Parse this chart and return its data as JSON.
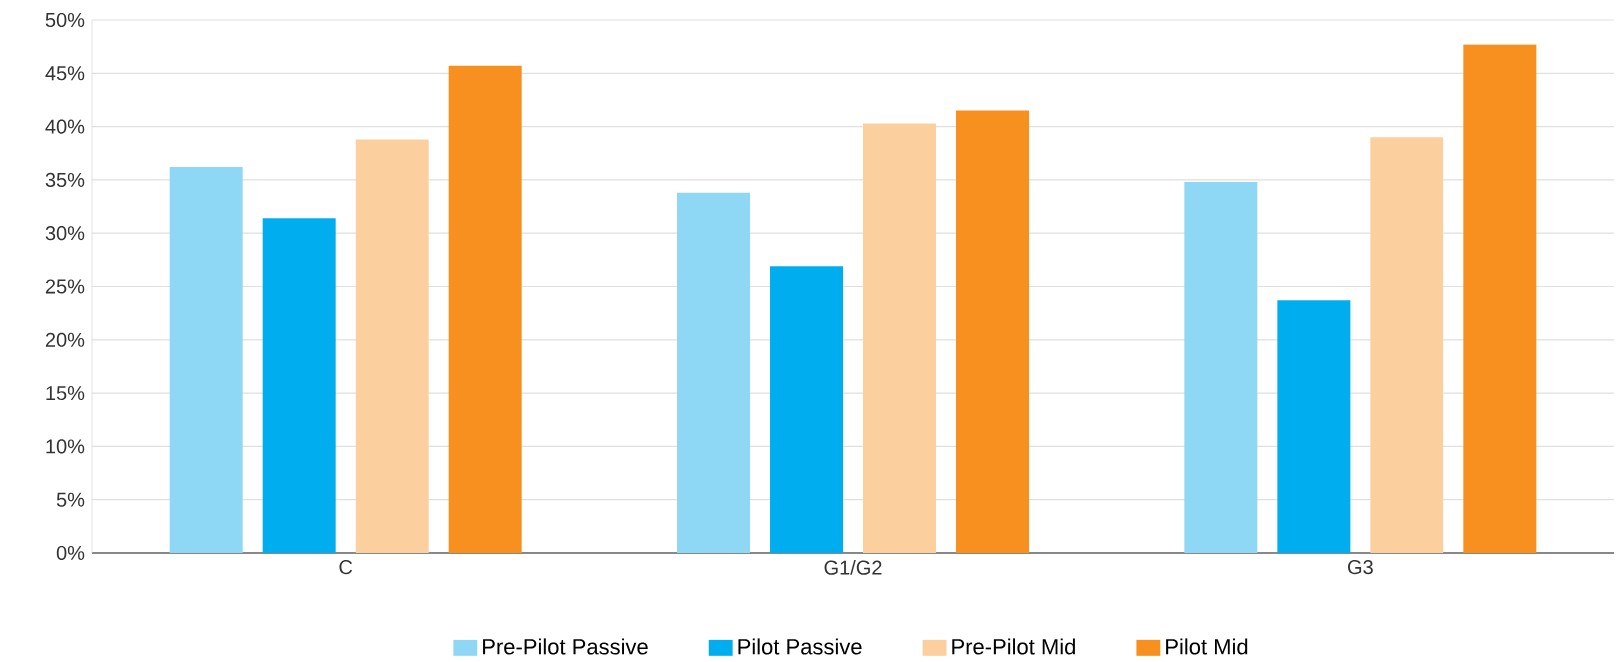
{
  "chart_data": {
    "type": "bar",
    "categories": [
      "C",
      "G1/G2",
      "G3"
    ],
    "series": [
      {
        "name": "Pre-Pilot Passive",
        "color": "#8fd8f5",
        "values": [
          36.2,
          33.8,
          34.8
        ]
      },
      {
        "name": "Pilot Passive",
        "color": "#00aeef",
        "values": [
          31.4,
          26.9,
          23.7
        ]
      },
      {
        "name": "Pre-Pilot Mid",
        "color": "#fccf9e",
        "values": [
          38.8,
          40.3,
          39.0
        ]
      },
      {
        "name": "Pilot Mid",
        "color": "#f7901e",
        "values": [
          45.7,
          41.5,
          47.7
        ]
      }
    ],
    "ylim": [
      0,
      50
    ],
    "yticks": [
      {
        "value": 0,
        "label": "0%"
      },
      {
        "value": 5,
        "label": "5%"
      },
      {
        "value": 10,
        "label": "10%"
      },
      {
        "value": 15,
        "label": "15%"
      },
      {
        "value": 20,
        "label": "20%"
      },
      {
        "value": 25,
        "label": "25%"
      },
      {
        "value": 30,
        "label": "30%"
      },
      {
        "value": 35,
        "label": "35%"
      },
      {
        "value": 40,
        "label": "40%"
      },
      {
        "value": 45,
        "label": "45%"
      },
      {
        "value": 50,
        "label": "50%"
      }
    ],
    "grid": "y",
    "legend": "bottom"
  }
}
